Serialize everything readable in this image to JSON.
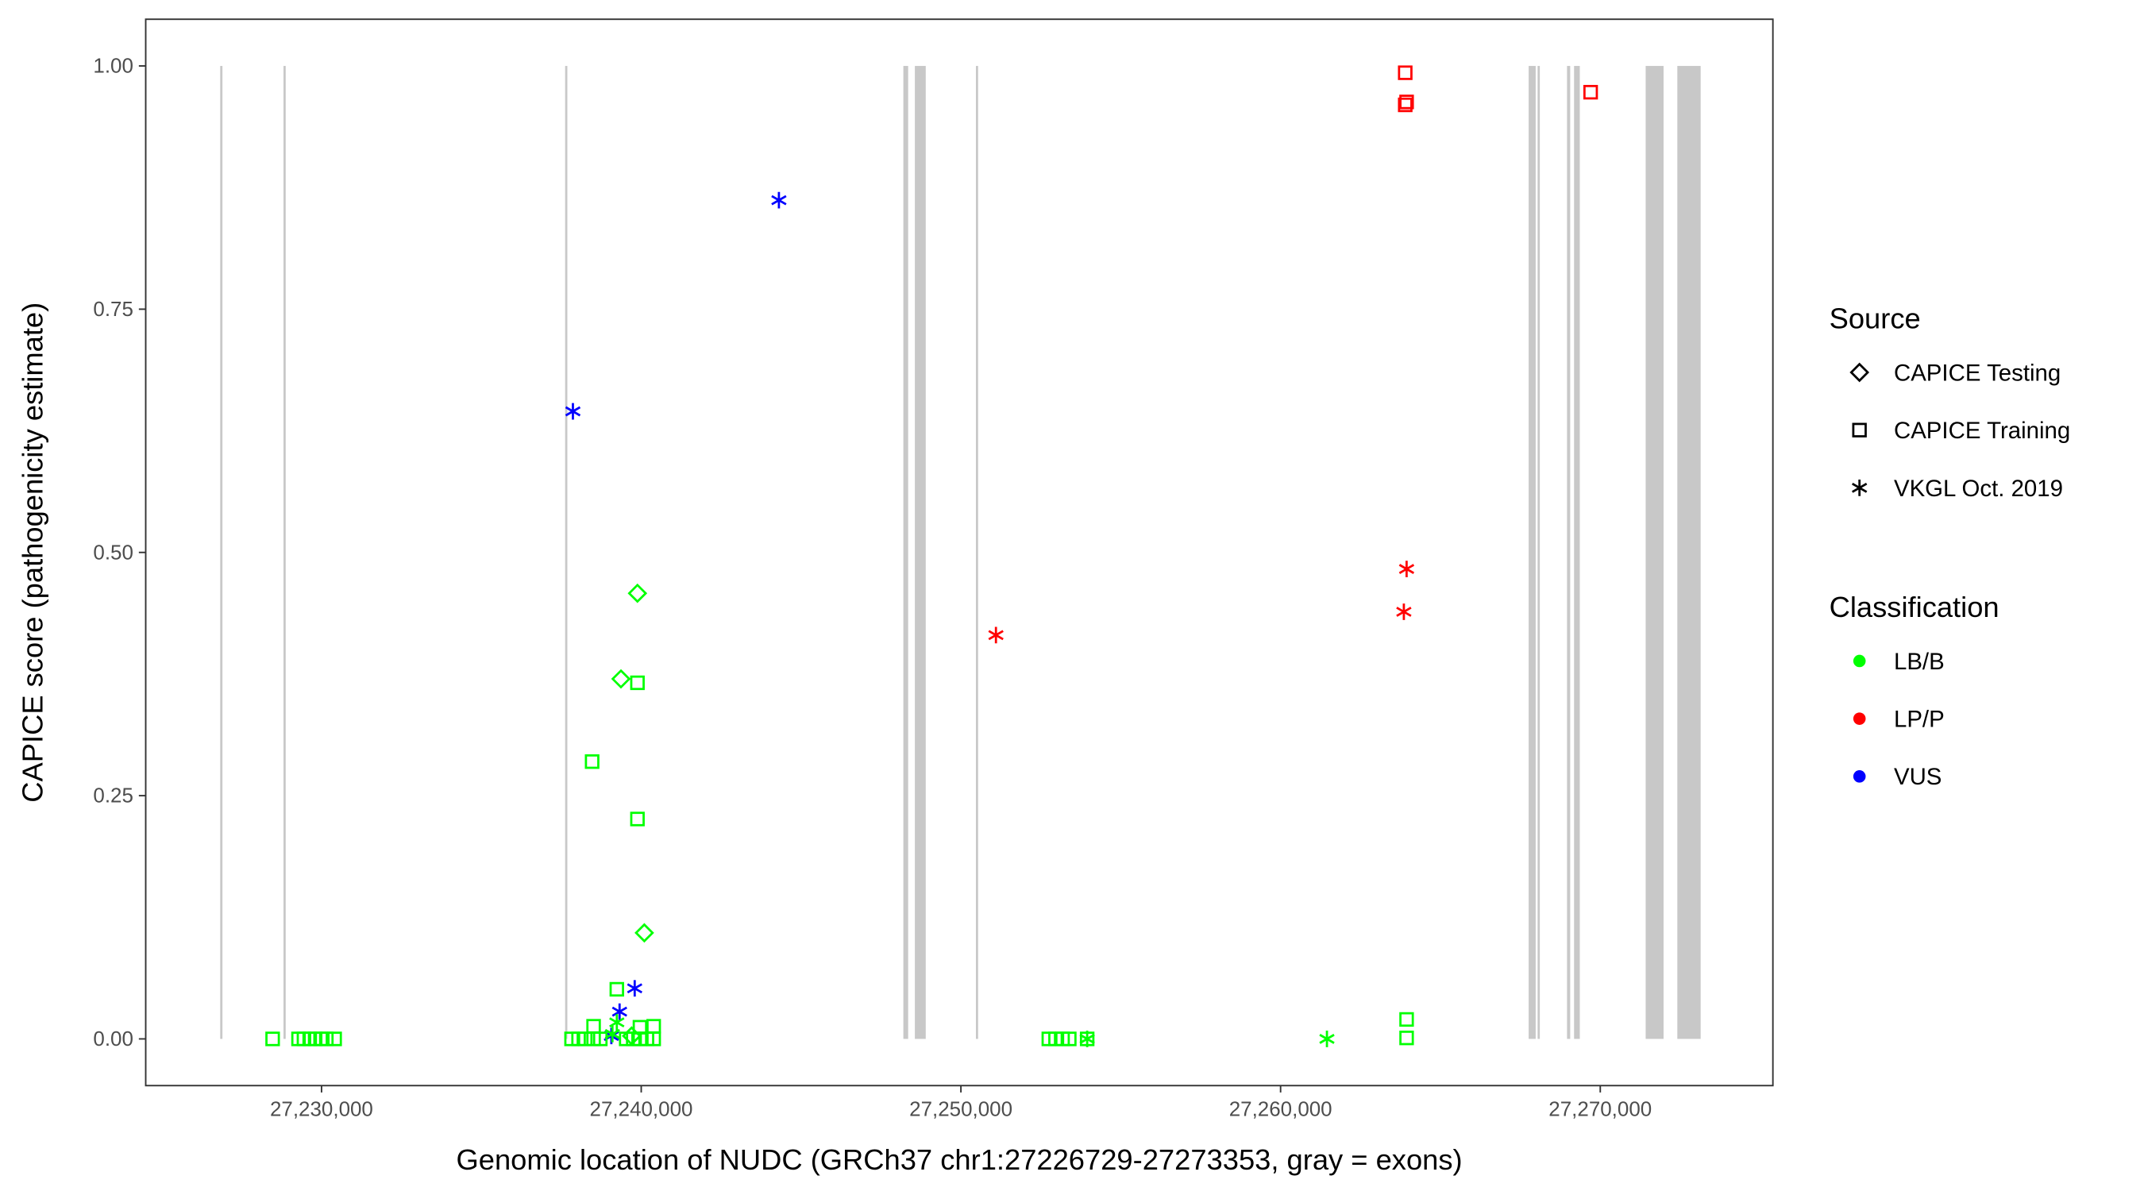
{
  "chart_data": {
    "type": "scatter",
    "title": "",
    "xlabel": "Genomic location of NUDC (GRCh37 chr1:27226729-27273353, gray = exons)",
    "ylabel": "CAPICE score (pathogenicity estimate)",
    "xlim": [
      27224500,
      27275400
    ],
    "ylim": [
      -0.048,
      1.048
    ],
    "x_ticks": [
      27230000,
      27240000,
      27250000,
      27260000,
      27270000
    ],
    "x_tick_labels": [
      "27,230,000",
      "27,240,000",
      "27,250,000",
      "27,260,000",
      "27,270,000"
    ],
    "y_ticks": [
      0,
      0.25,
      0.5,
      0.75,
      1.0
    ],
    "y_tick_labels": [
      "0.00",
      "0.25",
      "0.50",
      "0.75",
      "1.00"
    ],
    "grid": false,
    "exon_color": "#c8c8c8",
    "exons": [
      [
        27226830,
        27226900
      ],
      [
        27228810,
        27228870
      ],
      [
        27237620,
        27237680
      ],
      [
        27248200,
        27248350
      ],
      [
        27248560,
        27248900
      ],
      [
        27250470,
        27250520
      ],
      [
        27267760,
        27267980
      ],
      [
        27268040,
        27268090
      ],
      [
        27268960,
        27269060
      ],
      [
        27269180,
        27269360
      ],
      [
        27271420,
        27271980
      ],
      [
        27272410,
        27273140
      ]
    ],
    "legend": {
      "placement": "right",
      "source_title": "Source",
      "source_items": [
        {
          "label": "CAPICE Testing",
          "shape": "diamond"
        },
        {
          "label": "CAPICE Training",
          "shape": "square"
        },
        {
          "label": "VKGL Oct. 2019",
          "shape": "asterisk"
        }
      ],
      "class_title": "Classification",
      "class_items": [
        {
          "label": "LB/B",
          "color": "#00ff00"
        },
        {
          "label": "LP/P",
          "color": "#ff0000"
        },
        {
          "label": "VUS",
          "color": "#0000ff"
        }
      ]
    },
    "points": [
      {
        "x": 27244307,
        "y": 0.862,
        "source": "VKGL Oct. 2019",
        "class": "VUS"
      },
      {
        "x": 27237863,
        "y": 0.645,
        "source": "VKGL Oct. 2019",
        "class": "VUS"
      },
      {
        "x": 27239796,
        "y": 0.052,
        "source": "VKGL Oct. 2019",
        "class": "VUS"
      },
      {
        "x": 27239323,
        "y": 0.028,
        "source": "VKGL Oct. 2019",
        "class": "VUS"
      },
      {
        "x": 27239066,
        "y": 0.003,
        "source": "VKGL Oct. 2019",
        "class": "VUS"
      },
      {
        "x": 27251096,
        "y": 0.415,
        "source": "VKGL Oct. 2019",
        "class": "LP/P"
      },
      {
        "x": 27263942,
        "y": 0.483,
        "source": "VKGL Oct. 2019",
        "class": "LP/P"
      },
      {
        "x": 27263856,
        "y": 0.439,
        "source": "VKGL Oct. 2019",
        "class": "LP/P"
      },
      {
        "x": 27263899,
        "y": 0.993,
        "source": "CAPICE Training",
        "class": "LP/P"
      },
      {
        "x": 27263942,
        "y": 0.963,
        "source": "CAPICE Training",
        "class": "LP/P"
      },
      {
        "x": 27263899,
        "y": 0.96,
        "source": "CAPICE Training",
        "class": "LP/P"
      },
      {
        "x": 27269699,
        "y": 0.973,
        "source": "CAPICE Training",
        "class": "LP/P"
      },
      {
        "x": 27239882,
        "y": 0.458,
        "source": "CAPICE Testing",
        "class": "LB/B"
      },
      {
        "x": 27239366,
        "y": 0.37,
        "source": "CAPICE Testing",
        "class": "LB/B"
      },
      {
        "x": 27240097,
        "y": 0.109,
        "source": "CAPICE Testing",
        "class": "LB/B"
      },
      {
        "x": 27239700,
        "y": 0.003,
        "source": "CAPICE Testing",
        "class": "LB/B"
      },
      {
        "x": 27239882,
        "y": 0.366,
        "source": "CAPICE Training",
        "class": "LB/B"
      },
      {
        "x": 27238464,
        "y": 0.285,
        "source": "CAPICE Training",
        "class": "LB/B"
      },
      {
        "x": 27239882,
        "y": 0.226,
        "source": "CAPICE Training",
        "class": "LB/B"
      },
      {
        "x": 27239237,
        "y": 0.051,
        "source": "CAPICE Training",
        "class": "LB/B"
      },
      {
        "x": 27263942,
        "y": 0.02,
        "source": "CAPICE Training",
        "class": "LB/B"
      },
      {
        "x": 27263942,
        "y": 0.001,
        "source": "CAPICE Training",
        "class": "LB/B"
      },
      {
        "x": 27228470,
        "y": 0.0,
        "source": "CAPICE Training",
        "class": "LB/B"
      },
      {
        "x": 27229280,
        "y": 0.0,
        "source": "CAPICE Training",
        "class": "LB/B"
      },
      {
        "x": 27229450,
        "y": 0.0,
        "source": "CAPICE Training",
        "class": "LB/B"
      },
      {
        "x": 27229630,
        "y": 0.0,
        "source": "CAPICE Training",
        "class": "LB/B"
      },
      {
        "x": 27229800,
        "y": 0.0,
        "source": "CAPICE Training",
        "class": "LB/B"
      },
      {
        "x": 27229970,
        "y": 0.0,
        "source": "CAPICE Training",
        "class": "LB/B"
      },
      {
        "x": 27230150,
        "y": 0.0,
        "source": "CAPICE Training",
        "class": "LB/B"
      },
      {
        "x": 27230410,
        "y": 0.0,
        "source": "CAPICE Training",
        "class": "LB/B"
      },
      {
        "x": 27237820,
        "y": 0.0,
        "source": "CAPICE Training",
        "class": "LB/B"
      },
      {
        "x": 27238040,
        "y": 0.0,
        "source": "CAPICE Training",
        "class": "LB/B"
      },
      {
        "x": 27238250,
        "y": 0.0,
        "source": "CAPICE Training",
        "class": "LB/B"
      },
      {
        "x": 27238510,
        "y": 0.0,
        "source": "CAPICE Training",
        "class": "LB/B"
      },
      {
        "x": 27238510,
        "y": 0.013,
        "source": "CAPICE Training",
        "class": "LB/B"
      },
      {
        "x": 27238720,
        "y": 0.0,
        "source": "CAPICE Training",
        "class": "LB/B"
      },
      {
        "x": 27239530,
        "y": 0.0,
        "source": "CAPICE Training",
        "class": "LB/B"
      },
      {
        "x": 27239750,
        "y": 0.0,
        "source": "CAPICE Training",
        "class": "LB/B"
      },
      {
        "x": 27239960,
        "y": 0.0,
        "source": "CAPICE Training",
        "class": "LB/B"
      },
      {
        "x": 27239960,
        "y": 0.012,
        "source": "CAPICE Training",
        "class": "LB/B"
      },
      {
        "x": 27240180,
        "y": 0.0,
        "source": "CAPICE Training",
        "class": "LB/B"
      },
      {
        "x": 27240390,
        "y": 0.0,
        "source": "CAPICE Training",
        "class": "LB/B"
      },
      {
        "x": 27240390,
        "y": 0.013,
        "source": "CAPICE Training",
        "class": "LB/B"
      },
      {
        "x": 27252750,
        "y": 0.0,
        "source": "CAPICE Training",
        "class": "LB/B"
      },
      {
        "x": 27252960,
        "y": 0.0,
        "source": "CAPICE Training",
        "class": "LB/B"
      },
      {
        "x": 27253180,
        "y": 0.0,
        "source": "CAPICE Training",
        "class": "LB/B"
      },
      {
        "x": 27253390,
        "y": 0.0,
        "source": "CAPICE Training",
        "class": "LB/B"
      },
      {
        "x": 27253950,
        "y": 0.0,
        "source": "CAPICE Training",
        "class": "LB/B"
      },
      {
        "x": 27253950,
        "y": 0.0,
        "source": "VKGL Oct. 2019",
        "class": "LB/B"
      },
      {
        "x": 27261450,
        "y": 0.0,
        "source": "VKGL Oct. 2019",
        "class": "LB/B"
      },
      {
        "x": 27239237,
        "y": 0.017,
        "source": "VKGL Oct. 2019",
        "class": "LB/B"
      },
      {
        "x": 27239100,
        "y": 0.005,
        "source": "VKGL Oct. 2019",
        "class": "LB/B"
      }
    ]
  }
}
